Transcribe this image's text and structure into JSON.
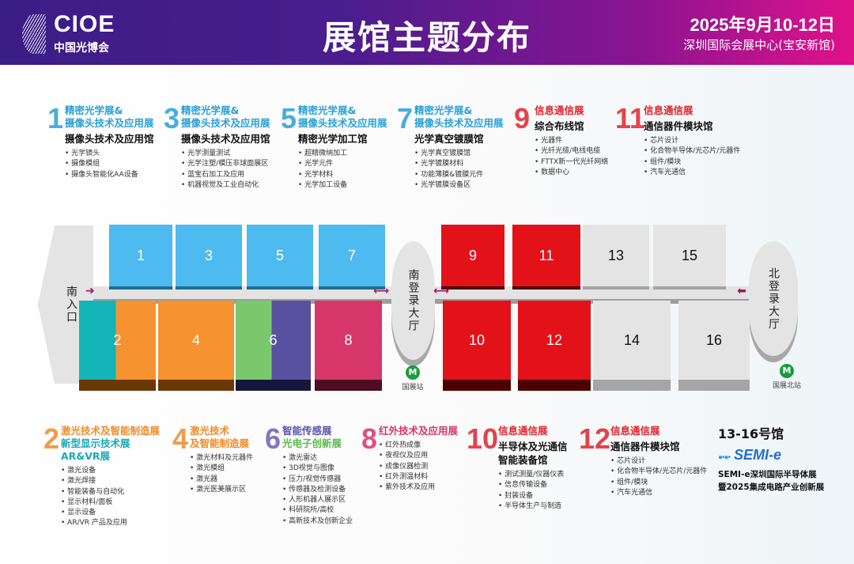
{
  "header": {
    "logo_en": "CIOE",
    "logo_cn": "中国光博会",
    "title": "展馆主题分布",
    "date": "2025年9月10-12日",
    "venue": "深圳国际会展中心(宝安新馆)"
  },
  "colors": {
    "blue": "#4dbaf0",
    "teal": "#14b5b8",
    "orange": "#f6922f",
    "green": "#79c96c",
    "purple": "#5952a1",
    "pink": "#d6366a",
    "red": "#e31219",
    "grey": "#e4e4e4"
  },
  "map": {
    "south_entrance": "南入口",
    "south_lobby": "南登录大厅",
    "north_lobby": "北登录大厅",
    "metro_south": "国展站",
    "metro_north": "国展北站",
    "metro_icon": "metro-icon",
    "halls": [
      {
        "n": "1",
        "color": "blue"
      },
      {
        "n": "3",
        "color": "blue"
      },
      {
        "n": "5",
        "color": "blue"
      },
      {
        "n": "7",
        "color": "blue"
      },
      {
        "n": "9",
        "color": "red"
      },
      {
        "n": "11",
        "color": "red"
      },
      {
        "n": "13",
        "color": "grey"
      },
      {
        "n": "15",
        "color": "grey"
      },
      {
        "n": "2",
        "color": "teal/orange"
      },
      {
        "n": "4",
        "color": "orange"
      },
      {
        "n": "6",
        "color": "green/purple"
      },
      {
        "n": "8",
        "color": "pink"
      },
      {
        "n": "10",
        "color": "red"
      },
      {
        "n": "12",
        "color": "red"
      },
      {
        "n": "14",
        "color": "grey"
      },
      {
        "n": "16",
        "color": "grey"
      }
    ]
  },
  "info": [
    {
      "num": "1",
      "exhibitions": [
        "精密光学展&",
        "摄像头技术及应用展"
      ],
      "hall": [
        "摄像头技术及应用馆"
      ],
      "items": [
        "光学镜头",
        "摄像模组",
        "摄像头智能化AA设备"
      ]
    },
    {
      "num": "3",
      "exhibitions": [
        "精密光学展&",
        "摄像头技术及应用展"
      ],
      "hall": [
        "摄像头技术及应用馆"
      ],
      "items": [
        "光学测量测试",
        "光学注塑/模压非球面展区",
        "蓝宝石加工及应用",
        "机器视觉及工业自动化"
      ]
    },
    {
      "num": "5",
      "exhibitions": [
        "精密光学展&",
        "摄像头技术及应用展"
      ],
      "hall": [
        "精密光学加工馆"
      ],
      "items": [
        "超精微纳加工",
        "光学元件",
        "光学材料",
        "光学加工设备"
      ]
    },
    {
      "num": "7",
      "exhibitions": [
        "精密光学展&",
        "摄像头技术及应用展"
      ],
      "hall": [
        "光学真空镀膜馆"
      ],
      "items": [
        "光学真空镀膜馆",
        "光学镀膜材料",
        "功能薄膜&镀膜元件",
        "光学镀膜设备区"
      ]
    },
    {
      "num": "9",
      "exhibitions": [
        "信息通信展"
      ],
      "hall": [
        "综合布线馆"
      ],
      "items": [
        "光器件",
        "光纤光缆/电线电缆",
        "FTTX新一代光纤网络",
        "数据中心"
      ]
    },
    {
      "num": "11",
      "exhibitions": [
        "信息通信展"
      ],
      "hall": [
        "通信器件模块馆"
      ],
      "items": [
        "芯片设计",
        "化合物半导体/光芯片/元器件",
        "组件/模块",
        "汽车光通信"
      ]
    },
    {
      "num": "2",
      "exhibitions": [
        "激光技术及智能制造展",
        "新型显示技术展",
        "AR&VR展"
      ],
      "hall": [],
      "items": [
        "激光设备",
        "激光焊接",
        "智能装备与自动化",
        "显示材料/面板",
        "显示设备",
        "AR/VR 产品及应用"
      ]
    },
    {
      "num": "4",
      "exhibitions": [
        "激光技术",
        "及智能制造展"
      ],
      "hall": [],
      "items": [
        "激光材料及元器件",
        "激光模组",
        "激光器",
        "激光医美展示区"
      ]
    },
    {
      "num": "6",
      "exhibitions": [
        "智能传感展",
        "光电子创新展"
      ],
      "hall": [],
      "items": [
        "激光雷达",
        "3D视觉与图像",
        "压力/视觉传感器",
        "传感器及检测设备",
        "人形机器人展示区",
        "科研院所/高校",
        "高新技术及创新企业"
      ]
    },
    {
      "num": "8",
      "exhibitions": [
        "红外技术及应用展"
      ],
      "hall": [],
      "items": [
        "红外热成像",
        "夜视仪及应用",
        "成像仪器检测",
        "红外测温材料",
        "紫外技术及应用"
      ]
    },
    {
      "num": "10",
      "exhibitions": [
        "信息通信展"
      ],
      "hall": [
        "半导体及光通信",
        "智能装备馆"
      ],
      "items": [
        "测试测量/仪器仪表",
        "信息传输设备",
        "封装设备",
        "半导体生产与制造"
      ]
    },
    {
      "num": "12",
      "exhibitions": [
        "信息通信展"
      ],
      "hall": [
        "通信器件模块馆"
      ],
      "items": [
        "芯片设计",
        "化合物半导体/光芯片/元器件",
        "组件/模块",
        "汽车光通信"
      ]
    }
  ],
  "semi": {
    "title": "13-16号馆",
    "logo": "SEMI-e",
    "logo_sub": "深圳国际半导体展",
    "desc1": "SEMI-e深圳国际半导体展",
    "desc2": "暨2025集成电路产业创新展"
  }
}
